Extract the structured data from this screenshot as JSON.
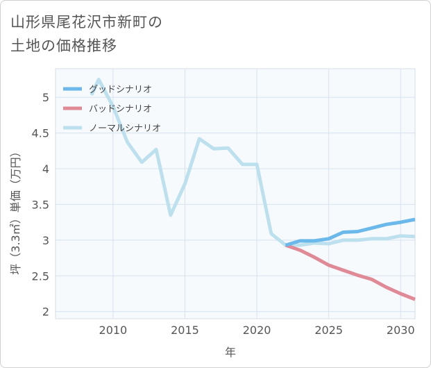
{
  "title": {
    "line1": "山形県尾花沢市新町の",
    "line2": "土地の価格推移"
  },
  "chart_data": {
    "type": "line",
    "xlabel": "年",
    "ylabel": "坪（3.3㎡）単価（万円）",
    "xlim": [
      2006,
      2031
    ],
    "ylim": [
      1.9,
      5.4
    ],
    "xticks": [
      2010,
      2015,
      2020,
      2025,
      2030
    ],
    "yticks": [
      2,
      2.5,
      3,
      3.5,
      4,
      4.5,
      5
    ],
    "ytick_labels": [
      "2",
      "2.5",
      "3",
      "3.5",
      "4",
      "4.5",
      "5"
    ],
    "grid": true,
    "legend_position": "top-left",
    "series": [
      {
        "name": "グッドシナリオ",
        "color": "#6bb8ea",
        "points": [
          [
            2022,
            2.93
          ],
          [
            2023,
            2.99
          ],
          [
            2024,
            2.99
          ],
          [
            2025,
            3.02
          ],
          [
            2026,
            3.11
          ],
          [
            2027,
            3.12
          ],
          [
            2028,
            3.17
          ],
          [
            2029,
            3.22
          ],
          [
            2030,
            3.25
          ],
          [
            2031,
            3.29
          ]
        ]
      },
      {
        "name": "バッドシナリオ",
        "color": "#df8a96",
        "points": [
          [
            2022,
            2.93
          ],
          [
            2023,
            2.86
          ],
          [
            2024,
            2.76
          ],
          [
            2025,
            2.65
          ],
          [
            2026,
            2.58
          ],
          [
            2027,
            2.51
          ],
          [
            2028,
            2.45
          ],
          [
            2029,
            2.34
          ],
          [
            2030,
            2.25
          ],
          [
            2031,
            2.17
          ]
        ]
      },
      {
        "name": "ノーマルシナリオ",
        "color": "#bde0ee",
        "points": [
          [
            2008.5,
            5.03
          ],
          [
            2009,
            5.25
          ],
          [
            2010,
            4.87
          ],
          [
            2011,
            4.37
          ],
          [
            2012,
            4.09
          ],
          [
            2013,
            4.27
          ],
          [
            2014,
            3.35
          ],
          [
            2015,
            3.79
          ],
          [
            2016,
            4.42
          ],
          [
            2017,
            4.28
          ],
          [
            2018,
            4.29
          ],
          [
            2019,
            4.06
          ],
          [
            2020,
            4.06
          ],
          [
            2021,
            3.09
          ],
          [
            2022,
            2.93
          ],
          [
            2023,
            2.93
          ],
          [
            2024,
            2.96
          ],
          [
            2025,
            2.95
          ],
          [
            2026,
            3.0
          ],
          [
            2027,
            3.0
          ],
          [
            2028,
            3.02
          ],
          [
            2029,
            3.02
          ],
          [
            2030,
            3.06
          ],
          [
            2031,
            3.05
          ]
        ]
      }
    ]
  }
}
